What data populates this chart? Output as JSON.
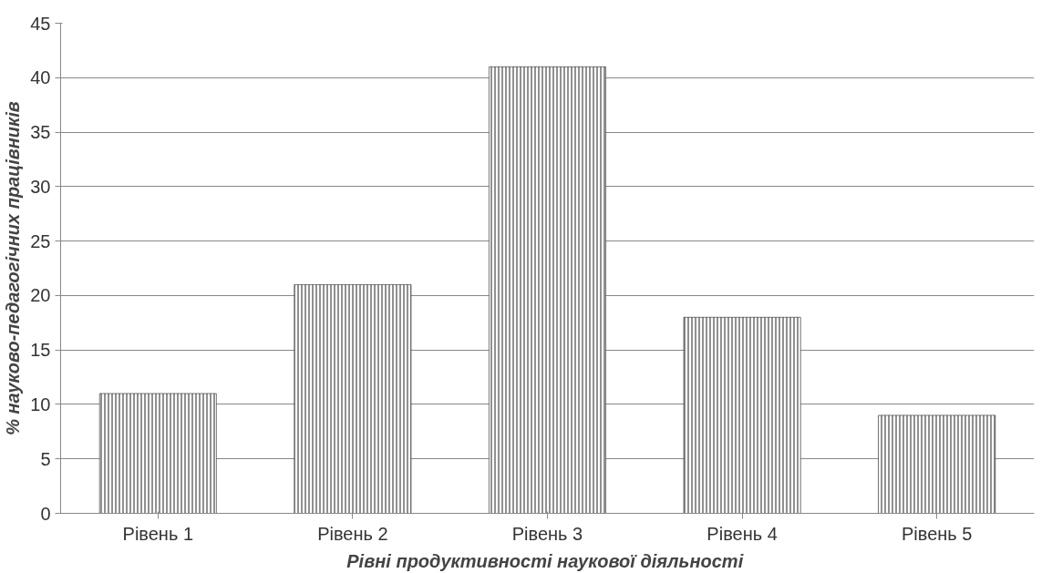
{
  "chart_data": {
    "type": "bar",
    "xlabel": "Рівні продуктивності  наукової діяльності",
    "ylabel": "% науково-педагогічних працівників",
    "categories": [
      "Рівень 1",
      "Рівень 2",
      "Рівень 3",
      "Рівень 4",
      "Рівень 5"
    ],
    "values": [
      11,
      21,
      41,
      18,
      9
    ],
    "color": "#222222",
    "ylim": [
      0,
      45
    ],
    "yticks": [
      0,
      5,
      10,
      15,
      20,
      25,
      30,
      35,
      40,
      45
    ],
    "grid": "y"
  }
}
